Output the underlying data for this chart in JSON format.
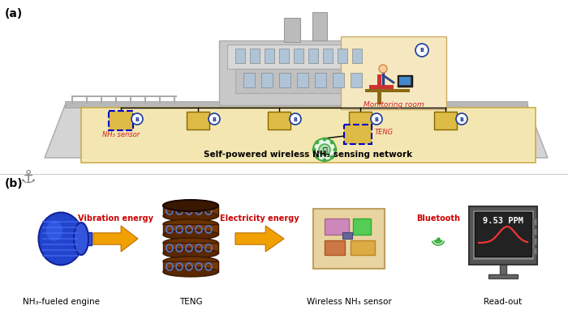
{
  "fig_width": 7.0,
  "fig_height": 3.88,
  "dpi": 100,
  "bg_color": "#ffffff",
  "panel_a_label": "(a)",
  "panel_b_label": "(b)",
  "ship_color": "#c8c8c8",
  "ship_body_color": "#d8d8d8",
  "ship_hull_color": "#b0b0b0",
  "monitoring_room_bg": "#f5e8c0",
  "network_bg": "#f5e8b0",
  "label_nh3_sensor": "NH₃ sensor",
  "label_teng": "TENG",
  "label_monitoring": "Monitoring room",
  "label_network": "Self-powered wireless NH₃ sensing network",
  "label_engine": "NH₃-fueled engine",
  "label_teng_b": "TENG",
  "label_wireless": "Wireless NH₃ sensor",
  "label_readout": "Read-out",
  "arrow_label1": "Vibration energy",
  "arrow_label2": "Electricity energy",
  "arrow_label3": "Bluetooth",
  "arrow_color": "#f0a000",
  "red_text_color": "#cc0000",
  "blue_circle_color": "#1a3a9c",
  "green_color": "#33aa33",
  "ppm_text": "9.53 PPM",
  "sensor_box_color": "#cc8800",
  "sensor_border_color": "#0000cc",
  "teng_box_color": "#0000aa"
}
